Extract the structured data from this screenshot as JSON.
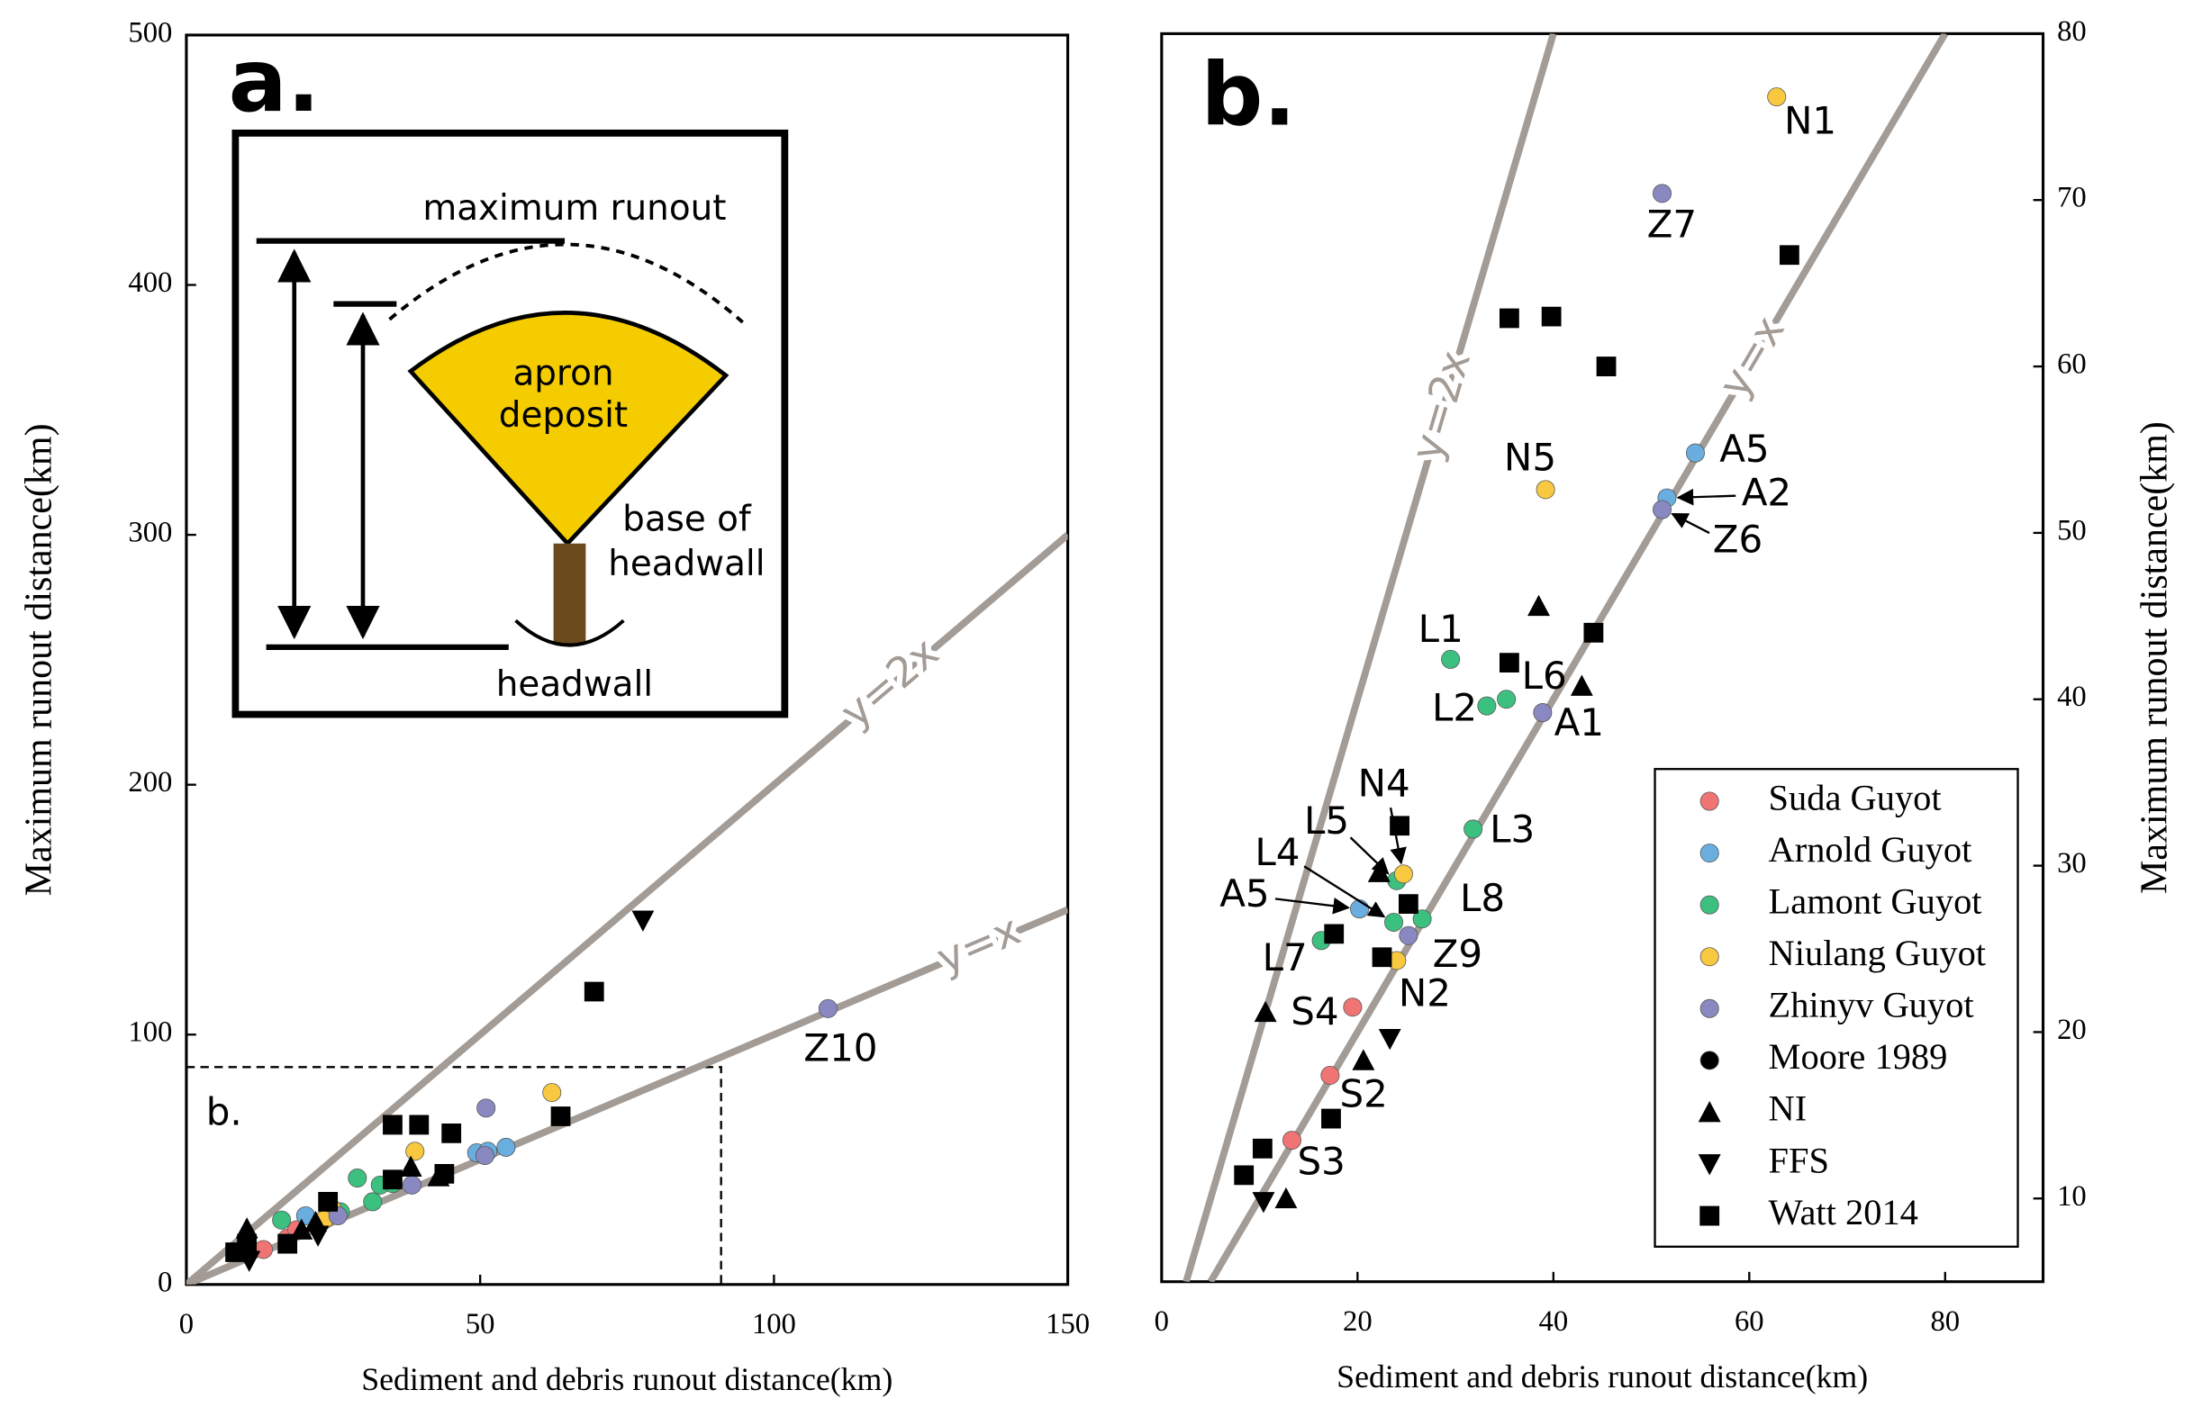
{
  "chart_data": [
    {
      "type": "scatter",
      "panel_label": "a.",
      "xlabel": "Sediment and debris runout distance(km)",
      "ylabel": "Maximum runout distance(km)",
      "xlim": [
        0,
        150
      ],
      "ylim": [
        0,
        500
      ],
      "xticks": [
        0,
        50,
        100,
        150
      ],
      "yticks": [
        0,
        100,
        200,
        300,
        400,
        500
      ],
      "legend": false,
      "lines": [
        {
          "label": "y=2x",
          "slope": 2
        },
        {
          "label": "y=x",
          "slope": 1
        }
      ],
      "zoom_box": {
        "label": "b.",
        "x": 91,
        "y": 87
      },
      "inset_labels": [
        "maximum runout",
        "apron",
        "deposit",
        "base of",
        "headwall",
        "headwall"
      ],
      "series": [
        {
          "name": "Suda Guyot",
          "color": "#f07474",
          "marker": "circle",
          "x": [
            13.1,
            17.2,
            18.8,
            24.3
          ],
          "values": [
            14.0,
            18.5,
            21.9,
            30.8
          ]
        },
        {
          "name": "Arnold Guyot",
          "color": "#6aaee0",
          "marker": "circle",
          "x": [
            20.3,
            49.4,
            51.3,
            54.4
          ],
          "values": [
            27.5,
            52.7,
            53.3,
            54.9
          ]
        },
        {
          "name": "Lamont Guyot",
          "color": "#3cc080",
          "marker": "circle",
          "x": [
            16.2,
            29.1,
            31.7,
            33.0,
            35.1,
            26.2
          ],
          "values": [
            25.8,
            42.6,
            33.1,
            39.8,
            40.4,
            29.1
          ]
        },
        {
          "name": "Niulang Guyot",
          "color": "#f8c840",
          "marker": "circle",
          "x": [
            62.2,
            38.9,
            24.8,
            23.4
          ],
          "values": [
            76.8,
            53.3,
            30.3,
            25.8
          ]
        },
        {
          "name": "Zhinyv Guyot",
          "color": "#8a88c0",
          "marker": "circle",
          "x": [
            109.2,
            51.0,
            50.8,
            38.4,
            25.8
          ],
          "values": [
            110.4,
            70.6,
            51.6,
            39.8,
            27.5
          ],
          "point_labels": [
            "Z10",
            null,
            null,
            null,
            null
          ]
        },
        {
          "name": "Moore 1989",
          "color": "#000000",
          "marker": "circle",
          "x": [],
          "values": []
        },
        {
          "name": "NI",
          "color": "#000000",
          "marker": "triangle-up",
          "x": [
            10.3,
            38.2,
            42.9,
            19.6,
            22.0
          ],
          "values": [
            22.4,
            47.1,
            43.2,
            21.9,
            25.0
          ]
        },
        {
          "name": "FFS",
          "color": "#000000",
          "marker": "triangle-down",
          "x": [
            77.7,
            10.7,
            22.4
          ],
          "values": [
            145.7,
            9.5,
            19.6
          ]
        },
        {
          "name": "Watt 2014",
          "color": "#000000",
          "marker": "square",
          "x": [
            69.4,
            35.1,
            39.6,
            45.1,
            63.7,
            43.9,
            35.1,
            24.1,
            8.3,
            10.3,
            17.2
          ],
          "values": [
            117.2,
            63.9,
            63.9,
            60.5,
            67.3,
            44.3,
            42.0,
            33.1,
            12.9,
            16.3,
            16.3
          ]
        }
      ]
    },
    {
      "type": "scatter",
      "panel_label": "b.",
      "xlabel": "Sediment and debris runout distance(km)",
      "ylabel": "Maximum runout distance(km)",
      "y_axis_side": "right",
      "xlim": [
        0,
        90
      ],
      "ylim": [
        5,
        80
      ],
      "xticks": [
        0,
        20,
        40,
        60,
        80
      ],
      "yticks": [
        10,
        20,
        30,
        40,
        50,
        60,
        70,
        80
      ],
      "legend": "lower right",
      "lines": [
        {
          "label": "y=2x",
          "slope": 2
        },
        {
          "label": "y=x",
          "slope": 1
        }
      ],
      "series": [
        {
          "name": "Suda Guyot",
          "color": "#f07474",
          "marker": "circle",
          "x": [
            19.5,
            17.2,
            13.3
          ],
          "values": [
            21.5,
            17.4,
            13.5
          ],
          "point_labels": [
            "S4",
            "S2",
            "S3"
          ]
        },
        {
          "name": "Arnold Guyot",
          "color": "#6aaee0",
          "marker": "circle",
          "x": [
            54.5,
            51.6,
            20.2
          ],
          "values": [
            54.8,
            52.1,
            27.4
          ],
          "point_labels": [
            "A5",
            "A2",
            "A5"
          ]
        },
        {
          "name": "Lamont Guyot",
          "color": "#3cc080",
          "marker": "circle",
          "x": [
            29.5,
            33.2,
            35.2,
            31.8,
            24.0,
            23.7,
            26.6,
            16.3
          ],
          "values": [
            42.4,
            39.6,
            40.0,
            32.2,
            29.1,
            26.6,
            26.8,
            25.5
          ],
          "point_labels": [
            "L1",
            "L2",
            "L6",
            "L3",
            "L5",
            "L4",
            "L8",
            "L7"
          ]
        },
        {
          "name": "Niulang Guyot",
          "color": "#f8c840",
          "marker": "circle",
          "x": [
            62.8,
            39.2,
            24.7,
            24.0
          ],
          "values": [
            76.2,
            52.6,
            29.5,
            24.3
          ],
          "point_labels": [
            "N1",
            "N5",
            "N4",
            "N2"
          ]
        },
        {
          "name": "Zhinyv Guyot",
          "color": "#8a88c0",
          "marker": "circle",
          "x": [
            51.1,
            51.1,
            38.9,
            25.2
          ],
          "values": [
            70.4,
            51.4,
            39.2,
            25.8
          ],
          "point_labels": [
            "Z7",
            "Z6",
            "A1",
            "Z9"
          ]
        },
        {
          "name": "Moore 1989",
          "color": "#000000",
          "marker": "circle",
          "x": [],
          "values": []
        },
        {
          "name": "NI",
          "color": "#000000",
          "marker": "triangle-up",
          "x": [
            38.5,
            42.9,
            22.2,
            10.6,
            20.6,
            12.7
          ],
          "values": [
            45.6,
            40.8,
            29.6,
            21.2,
            18.3,
            10.0
          ]
        },
        {
          "name": "FFS",
          "color": "#000000",
          "marker": "triangle-down",
          "x": [
            23.3,
            10.4
          ],
          "values": [
            19.6,
            9.8
          ]
        },
        {
          "name": "Watt 2014",
          "color": "#000000",
          "marker": "square",
          "x": [
            35.5,
            39.8,
            45.4,
            64.1,
            44.1,
            35.5,
            24.3,
            25.2,
            17.6,
            22.5,
            17.3,
            10.3,
            8.4
          ],
          "values": [
            62.9,
            63.0,
            60.0,
            66.7,
            44.0,
            42.2,
            32.4,
            27.7,
            25.9,
            24.5,
            14.8,
            13.0,
            11.4
          ]
        }
      ]
    }
  ]
}
